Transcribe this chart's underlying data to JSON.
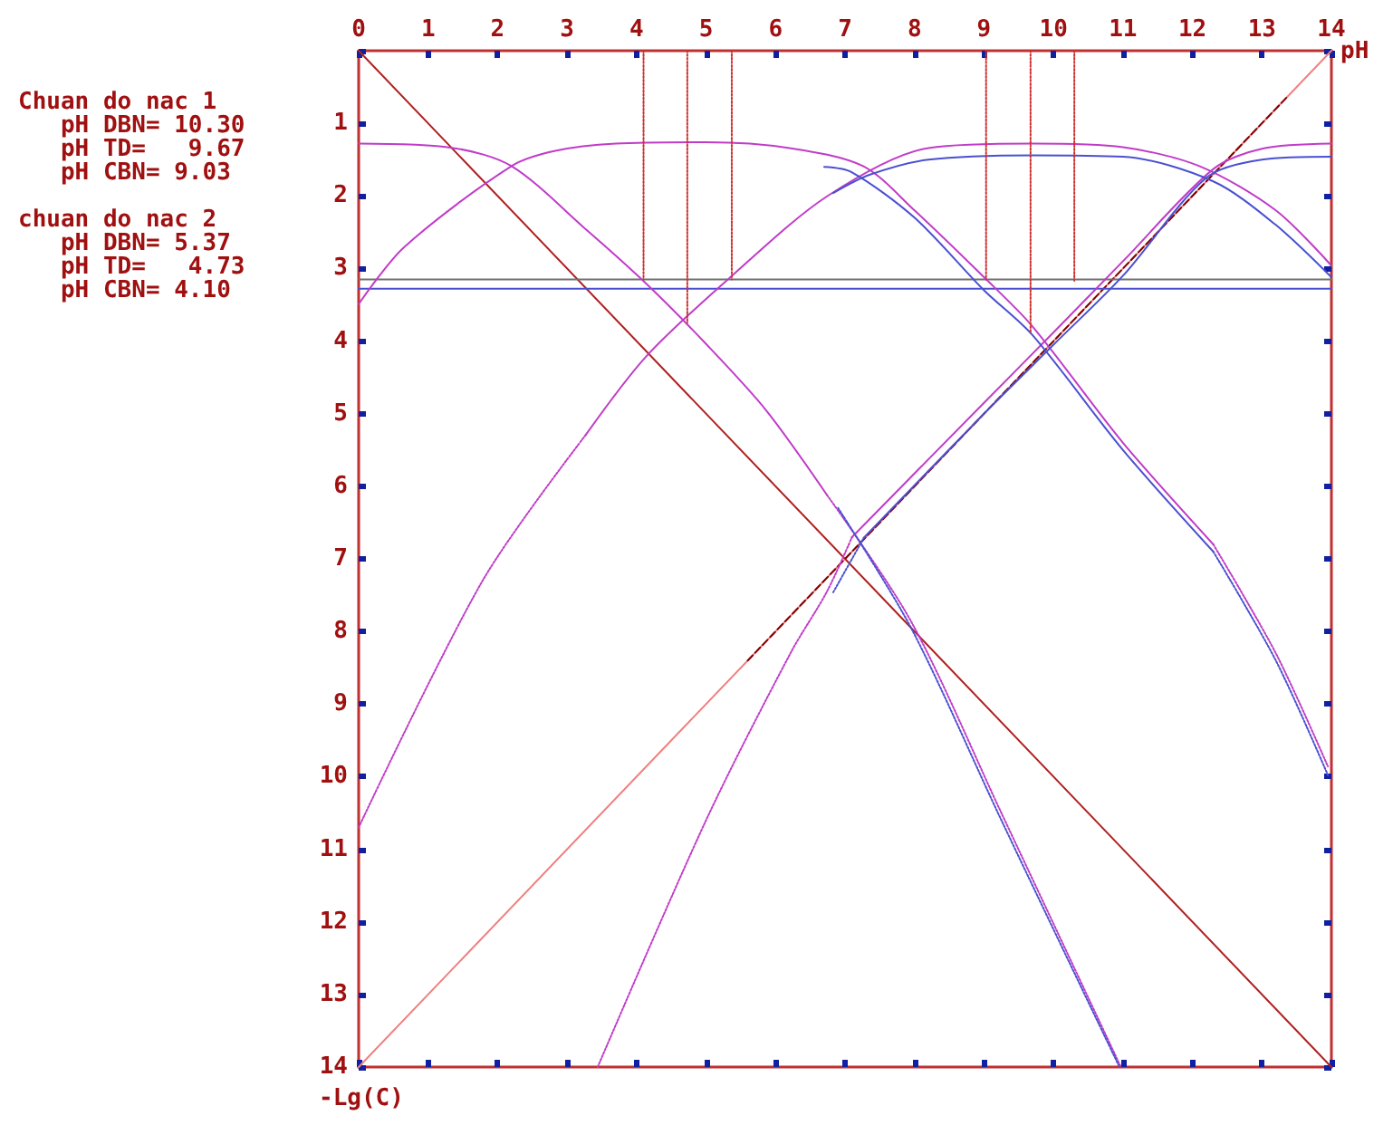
{
  "chart_data": {
    "type": "line",
    "xlabel": "pH",
    "ylabel": "-Lg(C)",
    "annotations": [
      "Chuan do nac 1\n   pH DBN= 10.30\n   pH TD=   9.67\n   pH CBN= 9.03",
      "chuan do nac 2\n   pH DBN= 5.37\n   pH TD=   4.73\n   pH CBN= 4.10"
    ],
    "xlim": [
      0,
      14
    ],
    "xticks": [
      0,
      1,
      2,
      3,
      4,
      5,
      6,
      7,
      8,
      9,
      10,
      11,
      12,
      13,
      14
    ],
    "ylim": [
      14,
      0
    ],
    "yticks": [
      {
        "value": 0,
        "label": null
      },
      1,
      2,
      3,
      4,
      5,
      6,
      7,
      8,
      9,
      10,
      11,
      12,
      13,
      14
    ],
    "marker": "none",
    "series": [
      {
        "x": [
          0,
          14
        ],
        "values": [
          0,
          14
        ],
        "color": "#b02020",
        "line_style": "solid"
      },
      {
        "x": [
          0,
          14
        ],
        "values": [
          14,
          0
        ],
        "color": "#f08080",
        "line_style": "solid"
      },
      {
        "x": [
          5.6,
          13.35
        ],
        "values": [
          8.4,
          0.65
        ],
        "color": "#800000",
        "line_style": "dashed"
      },
      {
        "x": [
          0,
          14
        ],
        "values": [
          3.15,
          3.15
        ],
        "color": "#707070",
        "line_style": "solid"
      },
      {
        "x": [
          0,
          14
        ],
        "values": [
          3.28,
          3.28
        ],
        "color": "#4a50d0",
        "line_style": "solid"
      },
      {
        "x": [
          0,
          1.36,
          2.2,
          3.27,
          4.14,
          5.0,
          5.87,
          6.74
        ],
        "values": [
          1.28,
          1.34,
          1.59,
          2.46,
          3.21,
          4.04,
          4.96,
          6.12
        ],
        "color": "#c03cc8",
        "line_style": "solid"
      },
      {
        "x": [
          6.74,
          7.95,
          9.25,
          10.97
        ],
        "values": [
          6.12,
          7.86,
          10.5,
          14
        ],
        "color": "#c03cc8",
        "line_style": "dotted"
      },
      {
        "x": [
          0,
          0.65,
          2.2,
          2.83,
          3.7,
          5.0,
          6.2,
          7.26,
          8.0,
          9.0,
          9.7,
          11.0,
          12.3
        ],
        "values": [
          3.49,
          2.71,
          1.59,
          1.38,
          1.28,
          1.26,
          1.34,
          1.59,
          2.2,
          3.12,
          3.8,
          5.4,
          6.8
        ],
        "color": "#c03cc8",
        "line_style": "solid"
      },
      {
        "x": [
          12.3,
          13.2,
          13.95
        ],
        "values": [
          6.8,
          8.3,
          9.86
        ],
        "color": "#c03cc8",
        "line_style": "dotted"
      },
      {
        "x": [
          0,
          1.79,
          3.27
        ],
        "values": [
          10.7,
          7.29,
          5.29
        ],
        "color": "#c03cc8",
        "line_style": "dotted"
      },
      {
        "x": [
          3.27,
          4.14,
          5.35,
          6.75,
          8.2,
          9.7,
          11.0,
          12.1,
          13.2,
          14
        ],
        "values": [
          5.29,
          4.21,
          3.12,
          2.0,
          1.34,
          1.28,
          1.33,
          1.59,
          2.2,
          2.96
        ],
        "color": "#c03cc8",
        "line_style": "solid"
      },
      {
        "x": [
          3.44,
          5.0,
          6.22,
          6.74,
          7.1
        ],
        "values": [
          14,
          10.6,
          8.29,
          7.45,
          6.7
        ],
        "color": "#c03cc8",
        "line_style": "dotted"
      },
      {
        "x": [
          7.1,
          9,
          10,
          11,
          12.3,
          13,
          14
        ],
        "values": [
          6.7,
          4.85,
          3.88,
          2.9,
          1.63,
          1.35,
          1.28
        ],
        "color": "#c03cc8",
        "line_style": "solid"
      },
      {
        "x": [
          6.83,
          7.35,
          8.2,
          9.7,
          11,
          12.3,
          13.2,
          14
        ],
        "values": [
          1.96,
          1.71,
          1.5,
          1.44,
          1.46,
          1.8,
          2.4,
          3.12
        ],
        "color": "#4a50d0",
        "line_style": "solid"
      },
      {
        "x": [
          6.7,
          7.09,
          8,
          9.0,
          9.7,
          11,
          12.3
        ],
        "values": [
          1.6,
          1.67,
          2.3,
          3.3,
          3.92,
          5.5,
          6.9
        ],
        "color": "#4a50d0",
        "line_style": "solid"
      },
      {
        "x": [
          12.3,
          13.2,
          13.95
        ],
        "values": [
          6.9,
          8.4,
          9.98
        ],
        "color": "#4a50d0",
        "line_style": "dotted"
      },
      {
        "x": [
          6.9,
          7.95,
          9.25,
          10.95
        ],
        "values": [
          6.3,
          7.95,
          10.6,
          14
        ],
        "color": "#4a50d0",
        "line_style": "dotted"
      },
      {
        "x": [
          6.83,
          7.27
        ],
        "values": [
          7.46,
          6.71
        ],
        "color": "#4a50d0",
        "line_style": "dotted"
      },
      {
        "x": [
          7.27,
          9,
          10,
          11,
          12.2,
          13,
          14
        ],
        "values": [
          6.71,
          5.0,
          4.05,
          3.1,
          1.75,
          1.5,
          1.46
        ],
        "color": "#4a50d0",
        "line_style": "solid"
      },
      {
        "x": [
          4.1,
          4.1
        ],
        "values": [
          0,
          3.15
        ],
        "color": "#d03030",
        "line_style": "dotted"
      },
      {
        "x": [
          4.73,
          4.73
        ],
        "values": [
          0,
          3.75
        ],
        "color": "#d03030",
        "line_style": "dotted"
      },
      {
        "x": [
          5.37,
          5.37
        ],
        "values": [
          0,
          3.15
        ],
        "color": "#d03030",
        "line_style": "dotted"
      },
      {
        "x": [
          9.03,
          9.03
        ],
        "values": [
          0,
          3.15
        ],
        "color": "#d03030",
        "line_style": "dotted"
      },
      {
        "x": [
          9.67,
          9.67
        ],
        "values": [
          0,
          3.87
        ],
        "color": "#d03030",
        "line_style": "dotted"
      },
      {
        "x": [
          10.3,
          10.3
        ],
        "values": [
          0,
          3.17
        ],
        "color": "#d03030",
        "line_style": "dotted"
      }
    ]
  }
}
